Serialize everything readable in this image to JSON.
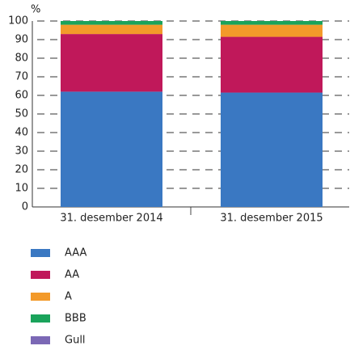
{
  "chart_data": {
    "type": "stacked_bar",
    "y_label": "%",
    "categories": [
      "31. desember 2014",
      "31. desember 2015"
    ],
    "series": [
      {
        "name": "AAA",
        "color": "#3a78c2",
        "values": [
          62,
          61.5
        ]
      },
      {
        "name": "AA",
        "color": "#c0185a",
        "values": [
          31,
          30
        ]
      },
      {
        "name": "A",
        "color": "#f39a2a",
        "values": [
          5,
          6.5
        ]
      },
      {
        "name": "BBB",
        "color": "#1aa35b",
        "values": [
          2,
          2
        ]
      },
      {
        "name": "Gull",
        "color": "#7b68b5",
        "values": [
          0,
          0
        ]
      }
    ],
    "ylim": [
      0,
      100
    ],
    "yticks": [
      0,
      10,
      20,
      30,
      40,
      50,
      60,
      70,
      80,
      90,
      100
    ],
    "grid": true
  }
}
